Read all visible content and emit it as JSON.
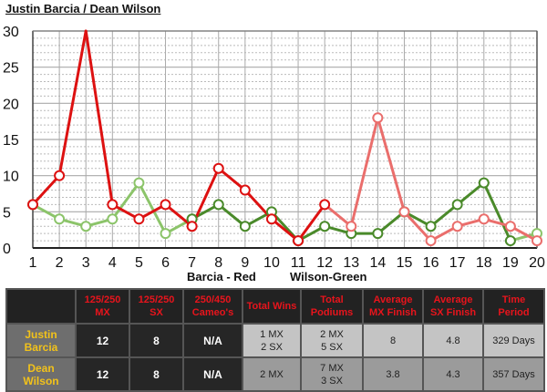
{
  "title": "Justin Barcia / Dean Wilson",
  "chart_data": {
    "type": "line",
    "title": "Justin Barcia / Dean Wilson",
    "x": [
      1,
      2,
      3,
      4,
      5,
      6,
      7,
      8,
      9,
      10,
      11,
      12,
      13,
      14,
      15,
      16,
      17,
      18,
      19,
      20
    ],
    "x_tick_labels": [
      "1",
      "2",
      "3",
      "4",
      "5",
      "6",
      "7",
      "8",
      "9",
      "10",
      "11",
      "12",
      "13",
      "14",
      "15",
      "16",
      "17",
      "18",
      "19",
      "20"
    ],
    "y_tick_labels": [
      "0",
      "5",
      "10",
      "15",
      "20",
      "25",
      "30"
    ],
    "ylim": [
      0,
      30
    ],
    "grid": true,
    "series": [
      {
        "name": "Barcia - Red",
        "color": "#dd1111",
        "color_light": "#ea6e6c",
        "values": [
          6,
          10,
          30,
          6,
          4,
          6,
          3,
          11,
          8,
          4,
          1,
          6,
          3,
          18,
          5,
          1,
          3,
          4,
          3,
          1
        ]
      },
      {
        "name": "Wilson-Green",
        "color": "#4a8a2a",
        "color_light": "#8cc46a",
        "values": [
          6,
          4,
          3,
          4,
          9,
          2,
          4,
          6,
          3,
          5,
          1,
          3,
          2,
          2,
          5,
          3,
          6,
          9,
          1,
          2
        ]
      }
    ],
    "legend": [
      "Barcia - Red",
      "Wilson-Green"
    ]
  },
  "table": {
    "headers": [
      "",
      "125/250\nMX",
      "125/250\nSX",
      "250/450\nCameo's",
      "Total Wins",
      "Total\nPodiums",
      "Average\nMX Finish",
      "Average\nSX Finish",
      "Time\nPeriod"
    ],
    "rows": [
      {
        "name": "Justin\nBarcia",
        "cells": [
          "12",
          "8",
          "N/A",
          "1 MX\n2 SX",
          "2 MX\n5 SX",
          "8",
          "4.8",
          "329 Days"
        ]
      },
      {
        "name": "Dean\nWilson",
        "cells": [
          "12",
          "8",
          "N/A",
          "2 MX",
          "7 MX\n3 SX",
          "3.8",
          "4.3",
          "357 Days"
        ]
      }
    ]
  }
}
